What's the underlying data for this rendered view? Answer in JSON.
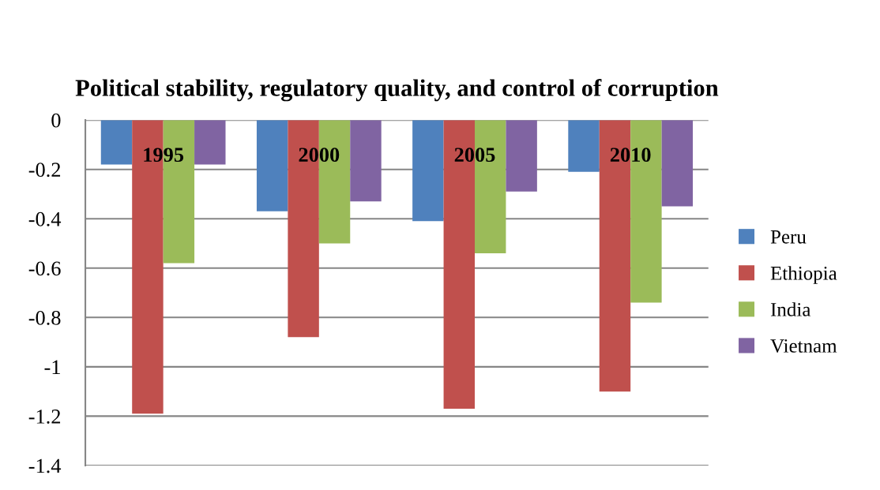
{
  "chart_data": {
    "type": "bar",
    "title": "Political stability, regulatory quality, and control of corruption",
    "categories": [
      "1995",
      "2000",
      "2005",
      "2010"
    ],
    "series": [
      {
        "name": "Peru",
        "color": "#4f81bd",
        "values": [
          -0.18,
          -0.37,
          -0.41,
          -0.21
        ]
      },
      {
        "name": "Ethiopia",
        "color": "#c0504d",
        "values": [
          -1.19,
          -0.88,
          -1.17,
          -1.1
        ]
      },
      {
        "name": "India",
        "color": "#9bbb59",
        "values": [
          -0.58,
          -0.5,
          -0.54,
          -0.74
        ]
      },
      {
        "name": "Vietnam",
        "color": "#8064a2",
        "values": [
          -0.18,
          -0.33,
          -0.29,
          -0.35
        ]
      }
    ],
    "ylim": [
      -1.4,
      0
    ],
    "yticks": [
      0,
      -0.2,
      -0.4,
      -0.6,
      -0.8,
      -1,
      -1.2,
      -1.4
    ],
    "grid": "y",
    "legend": "right"
  }
}
